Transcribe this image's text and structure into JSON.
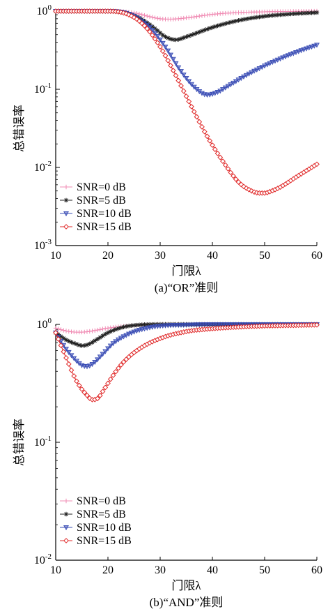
{
  "chart_data": [
    {
      "type": "line",
      "title": "(a)“OR”准则",
      "xlabel": "门限λ",
      "ylabel": "总错误率",
      "x_scale": "linear",
      "y_scale": "log",
      "xlim": [
        10,
        60
      ],
      "ylim": [
        0.001,
        1
      ],
      "xticks": [
        "10",
        "20",
        "30",
        "40",
        "50",
        "60"
      ],
      "yticks": [
        {
          "base": "10",
          "exp": "0",
          "value": 1
        },
        {
          "base": "10",
          "exp": "-1",
          "value": 0.1
        },
        {
          "base": "10",
          "exp": "-2",
          "value": 0.01
        },
        {
          "base": "10",
          "exp": "-3",
          "value": 0.001
        }
      ],
      "grid": false,
      "legend_position": "lower-left",
      "series": [
        {
          "name": "SNR=0 dB",
          "color": "#f08cb4",
          "marker": "plus",
          "x": [
            10,
            20,
            25,
            28,
            30,
            32,
            35,
            40,
            45,
            50,
            55,
            60
          ],
          "y": [
            1.0,
            1.0,
            0.95,
            0.85,
            0.8,
            0.79,
            0.82,
            0.91,
            0.96,
            0.98,
            0.99,
            1.0
          ]
        },
        {
          "name": "SNR=5 dB",
          "color": "#222222",
          "marker": "star",
          "x": [
            10,
            20,
            23,
            26,
            29,
            31,
            33,
            35,
            40,
            45,
            50,
            55,
            60
          ],
          "y": [
            1.0,
            1.0,
            0.96,
            0.82,
            0.6,
            0.47,
            0.43,
            0.47,
            0.62,
            0.76,
            0.86,
            0.92,
            0.96
          ]
        },
        {
          "name": "SNR=10 dB",
          "color": "#3a4db5",
          "marker": "triangle-down",
          "x": [
            10,
            20,
            24,
            28,
            31,
            34,
            37,
            39,
            41,
            43,
            46,
            50,
            55,
            60
          ],
          "y": [
            1.0,
            1.0,
            0.92,
            0.62,
            0.35,
            0.17,
            0.1,
            0.085,
            0.092,
            0.11,
            0.145,
            0.2,
            0.28,
            0.37
          ]
        },
        {
          "name": "SNR=15 dB",
          "color": "#e02a2a",
          "marker": "diamond",
          "x": [
            10,
            20,
            24,
            27,
            30,
            33,
            36,
            39,
            42,
            45,
            47,
            49,
            50,
            51,
            53,
            56,
            60
          ],
          "y": [
            1.0,
            1.0,
            0.9,
            0.65,
            0.35,
            0.15,
            0.06,
            0.025,
            0.012,
            0.0065,
            0.0052,
            0.0047,
            0.0047,
            0.0049,
            0.0056,
            0.0075,
            0.011
          ]
        }
      ]
    },
    {
      "type": "line",
      "title": "(b)“AND”准则",
      "xlabel": "门限λ",
      "ylabel": "总错误率",
      "x_scale": "linear",
      "y_scale": "log",
      "xlim": [
        10,
        60
      ],
      "ylim": [
        0.01,
        1
      ],
      "xticks": [
        "10",
        "20",
        "30",
        "40",
        "50",
        "60"
      ],
      "yticks": [
        {
          "base": "10",
          "exp": "0",
          "value": 1
        },
        {
          "base": "10",
          "exp": "-1",
          "value": 0.1
        },
        {
          "base": "10",
          "exp": "-2",
          "value": 0.01
        }
      ],
      "grid": false,
      "legend_position": "lower-left",
      "series": [
        {
          "name": "SNR=0 dB",
          "color": "#f08cb4",
          "marker": "plus",
          "x": [
            10,
            12,
            14,
            15,
            17,
            20,
            25,
            30,
            40,
            50,
            60
          ],
          "y": [
            0.93,
            0.88,
            0.86,
            0.86,
            0.88,
            0.93,
            0.98,
            1.0,
            1.0,
            1.0,
            1.0
          ]
        },
        {
          "name": "SNR=5 dB",
          "color": "#222222",
          "marker": "star",
          "x": [
            10,
            12,
            14,
            15,
            16,
            18,
            20,
            23,
            26,
            30,
            40,
            50,
            60
          ],
          "y": [
            0.85,
            0.74,
            0.68,
            0.66,
            0.67,
            0.75,
            0.85,
            0.95,
            0.99,
            1.0,
            1.0,
            1.0,
            1.0
          ]
        },
        {
          "name": "SNR=10 dB",
          "color": "#3a4db5",
          "marker": "triangle-down",
          "x": [
            10,
            12,
            14,
            15,
            16,
            17,
            19,
            21,
            24,
            27,
            30,
            35,
            40,
            50,
            60
          ],
          "y": [
            0.85,
            0.62,
            0.49,
            0.45,
            0.44,
            0.46,
            0.56,
            0.69,
            0.83,
            0.92,
            0.97,
            0.99,
            1.0,
            1.0,
            1.0
          ]
        },
        {
          "name": "SNR=15 dB",
          "color": "#e02a2a",
          "marker": "diamond",
          "x": [
            10,
            12,
            14,
            16,
            17,
            18,
            19,
            21,
            23,
            26,
            30,
            35,
            40,
            45,
            50,
            55,
            60
          ],
          "y": [
            0.85,
            0.52,
            0.33,
            0.25,
            0.23,
            0.235,
            0.27,
            0.37,
            0.48,
            0.62,
            0.76,
            0.87,
            0.92,
            0.95,
            0.97,
            0.98,
            0.99
          ]
        }
      ]
    }
  ]
}
